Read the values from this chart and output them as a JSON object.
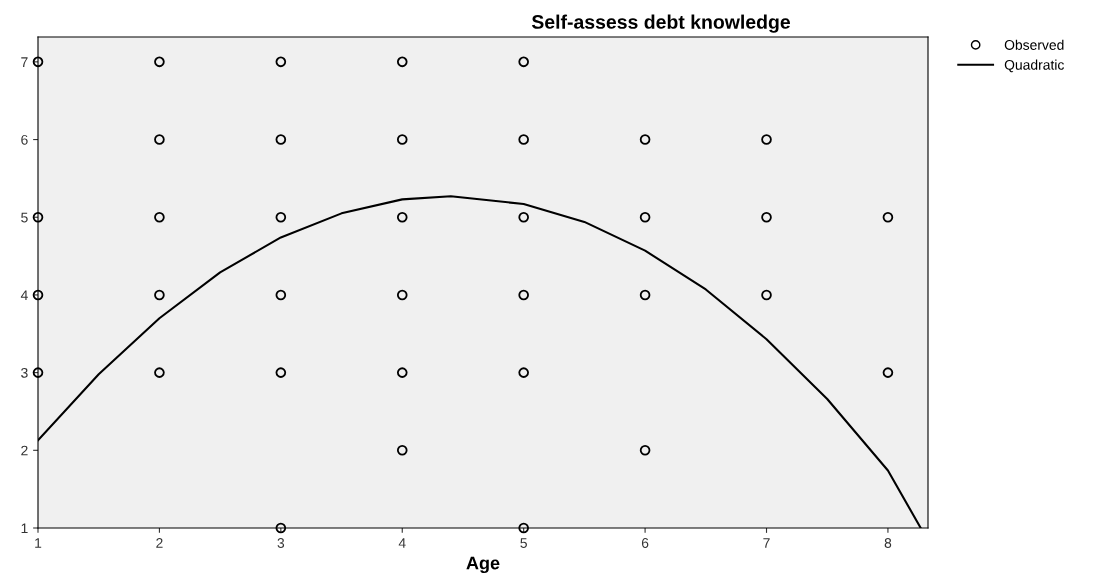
{
  "chart_data": {
    "type": "scatter",
    "title": "Self-assess debt knowledge",
    "xlabel": "Age",
    "series": [
      {
        "name": "Observed",
        "color": "#000000",
        "marker": "circle",
        "x": [
          1,
          1,
          1,
          1,
          2,
          2,
          2,
          2,
          2,
          3,
          3,
          3,
          3,
          3,
          3,
          4,
          4,
          4,
          4,
          4,
          4,
          5,
          5,
          5,
          5,
          5,
          5,
          6,
          6,
          6,
          6,
          7,
          7,
          7,
          8,
          8
        ],
        "values": [
          7,
          5,
          4,
          3,
          7,
          6,
          5,
          4,
          3,
          7,
          6,
          5,
          4,
          3,
          1,
          7,
          6,
          5,
          4,
          3,
          2,
          7,
          6,
          5,
          4,
          3,
          1,
          6,
          5,
          4,
          2,
          6,
          5,
          4,
          5,
          3
        ]
      },
      {
        "name": "Quadratic",
        "type": "line",
        "color": "#000000",
        "marker": "none",
        "line_style": "solid",
        "x": [
          1,
          1.5,
          2,
          2.5,
          3,
          3.5,
          4,
          4.4,
          5,
          5.5,
          6,
          6.5,
          7,
          7.5,
          8,
          8.27
        ],
        "values": [
          2.13,
          2.98,
          3.7,
          4.29,
          4.74,
          5.05,
          5.23,
          5.27,
          5.17,
          4.94,
          4.57,
          4.07,
          3.43,
          2.66,
          1.74,
          1.0
        ]
      }
    ],
    "xlim": [
      1,
      8.33
    ],
    "ylim": [
      1,
      7.32
    ],
    "xticks": [
      1,
      2,
      3,
      4,
      5,
      6,
      7,
      8
    ],
    "yticks": [
      1,
      2,
      3,
      4,
      5,
      6,
      7
    ],
    "grid": false,
    "legend": "top right"
  }
}
